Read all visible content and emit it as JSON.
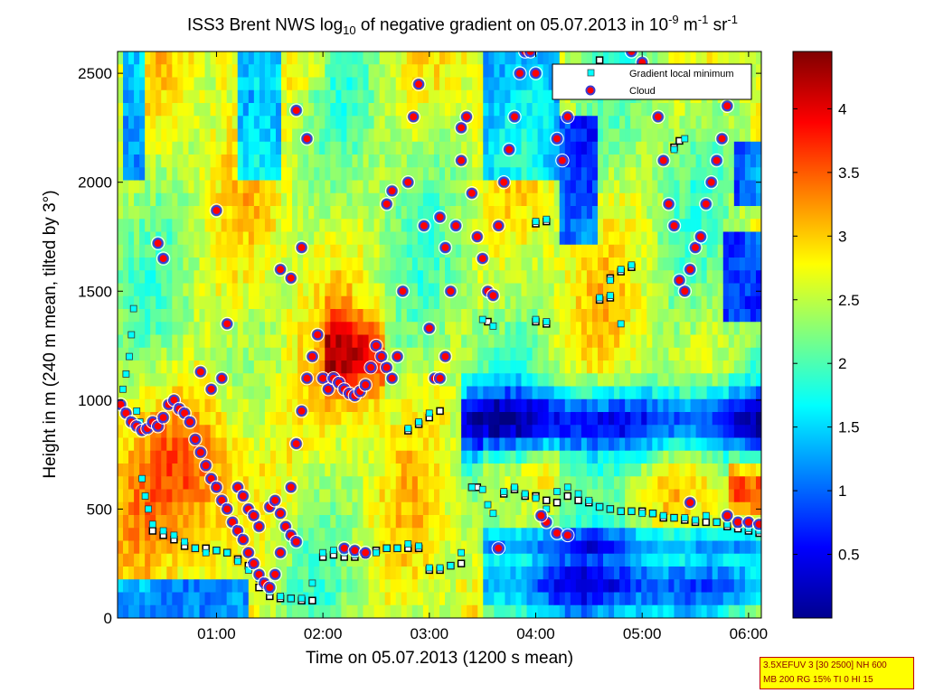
{
  "title": {
    "prefix": "ISS3 Brent NWS log",
    "sub": "10",
    "middle": " of negative gradient on 05.07.2013 in 10",
    "exp1": "-9",
    "unit1": " m",
    "exp2": "-1",
    "unit2": " sr",
    "exp3": "-1"
  },
  "chart_data": {
    "type": "heatmap",
    "xlabel": "Time on 05.07.2013 (1200 s mean)",
    "ylabel": "Height in m (240 m mean, tilted by 3°)",
    "x_ticks": [
      "01:00",
      "02:00",
      "03:00",
      "04:00",
      "05:00",
      "06:00"
    ],
    "x_tick_hours": [
      1,
      2,
      3,
      4,
      5,
      6
    ],
    "xlim_hours": [
      0.07,
      6.12
    ],
    "y_ticks": [
      0,
      500,
      1000,
      1500,
      2000,
      2500
    ],
    "ylim": [
      0,
      2600
    ],
    "colorbar": {
      "ticks": [
        "0.5",
        "1",
        "1.5",
        "2",
        "2.5",
        "3",
        "3.5",
        "4"
      ],
      "tick_values": [
        0.5,
        1,
        1.5,
        2,
        2.5,
        3,
        3.5,
        4
      ],
      "range": [
        0,
        4.45
      ],
      "colormap": "jet"
    },
    "legend": {
      "placement": "top-right",
      "entries": [
        {
          "label": "Gradient local minimum",
          "color": "#00ffff",
          "marker": "square"
        },
        {
          "label": "Cloud",
          "color": "#ff0000",
          "marker": "circle"
        }
      ]
    },
    "series": [
      {
        "name": "Gradient local minimum",
        "points": [
          [
            0.12,
            1050
          ],
          [
            0.15,
            1120
          ],
          [
            0.18,
            1200
          ],
          [
            0.2,
            1300
          ],
          [
            0.22,
            1420
          ],
          [
            0.25,
            950
          ],
          [
            0.28,
            900
          ],
          [
            0.3,
            640
          ],
          [
            0.33,
            560
          ],
          [
            0.36,
            500
          ],
          [
            0.4,
            430
          ],
          [
            0.5,
            400
          ],
          [
            0.6,
            380
          ],
          [
            0.7,
            350
          ],
          [
            0.8,
            320
          ],
          [
            0.9,
            300
          ],
          [
            1.0,
            310
          ],
          [
            1.1,
            300
          ],
          [
            1.2,
            260
          ],
          [
            1.3,
            220
          ],
          [
            1.4,
            180
          ],
          [
            1.5,
            120
          ],
          [
            1.6,
            100
          ],
          [
            1.7,
            90
          ],
          [
            1.8,
            90
          ],
          [
            1.9,
            160
          ],
          [
            2.0,
            300
          ],
          [
            2.1,
            310
          ],
          [
            2.2,
            300
          ],
          [
            2.3,
            290
          ],
          [
            2.4,
            290
          ],
          [
            2.5,
            300
          ],
          [
            2.6,
            320
          ],
          [
            2.7,
            320
          ],
          [
            2.8,
            340
          ],
          [
            2.9,
            330
          ],
          [
            3.0,
            230
          ],
          [
            3.1,
            230
          ],
          [
            3.2,
            240
          ],
          [
            3.3,
            300
          ],
          [
            3.4,
            600
          ],
          [
            3.5,
            590
          ],
          [
            3.55,
            520
          ],
          [
            3.6,
            480
          ],
          [
            3.65,
            320
          ],
          [
            3.7,
            580
          ],
          [
            3.8,
            600
          ],
          [
            3.9,
            570
          ],
          [
            4.0,
            550
          ],
          [
            4.1,
            500
          ],
          [
            4.2,
            580
          ],
          [
            4.3,
            600
          ],
          [
            4.4,
            570
          ],
          [
            4.5,
            540
          ],
          [
            4.6,
            510
          ],
          [
            4.7,
            500
          ],
          [
            4.8,
            490
          ],
          [
            4.9,
            490
          ],
          [
            5.0,
            480
          ],
          [
            5.1,
            480
          ],
          [
            5.2,
            470
          ],
          [
            5.3,
            460
          ],
          [
            5.4,
            460
          ],
          [
            5.5,
            450
          ],
          [
            5.6,
            470
          ],
          [
            5.7,
            440
          ],
          [
            5.8,
            430
          ],
          [
            5.9,
            430
          ],
          [
            6.0,
            410
          ],
          [
            6.1,
            400
          ],
          [
            2.8,
            870
          ],
          [
            2.9,
            900
          ],
          [
            3.0,
            940
          ],
          [
            4.0,
            1820
          ],
          [
            4.1,
            1830
          ],
          [
            4.0,
            1370
          ],
          [
            4.1,
            1360
          ],
          [
            4.7,
            1550
          ],
          [
            4.8,
            1600
          ],
          [
            4.9,
            1620
          ],
          [
            4.6,
            1470
          ],
          [
            4.7,
            1480
          ],
          [
            4.8,
            1350
          ],
          [
            3.5,
            1370
          ],
          [
            3.6,
            1340
          ],
          [
            5.3,
            2150
          ],
          [
            5.4,
            2200
          ]
        ]
      },
      {
        "name": "Cloud",
        "points": [
          [
            0.1,
            980
          ],
          [
            0.15,
            940
          ],
          [
            0.2,
            900
          ],
          [
            0.25,
            880
          ],
          [
            0.3,
            860
          ],
          [
            0.35,
            870
          ],
          [
            0.4,
            900
          ],
          [
            0.45,
            880
          ],
          [
            0.5,
            920
          ],
          [
            0.55,
            980
          ],
          [
            0.6,
            1000
          ],
          [
            0.65,
            960
          ],
          [
            0.7,
            940
          ],
          [
            0.75,
            900
          ],
          [
            0.8,
            820
          ],
          [
            0.85,
            760
          ],
          [
            0.9,
            700
          ],
          [
            0.95,
            640
          ],
          [
            1.0,
            600
          ],
          [
            1.05,
            540
          ],
          [
            1.1,
            500
          ],
          [
            1.15,
            440
          ],
          [
            1.2,
            400
          ],
          [
            1.25,
            360
          ],
          [
            1.3,
            300
          ],
          [
            1.35,
            250
          ],
          [
            1.4,
            200
          ],
          [
            1.45,
            160
          ],
          [
            1.5,
            140
          ],
          [
            1.55,
            200
          ],
          [
            1.6,
            300
          ],
          [
            1.65,
            420
          ],
          [
            1.7,
            600
          ],
          [
            1.75,
            800
          ],
          [
            1.8,
            950
          ],
          [
            1.85,
            1100
          ],
          [
            1.9,
            1200
          ],
          [
            1.95,
            1300
          ],
          [
            2.0,
            1100
          ],
          [
            2.05,
            1050
          ],
          [
            2.1,
            1100
          ],
          [
            2.15,
            1080
          ],
          [
            2.2,
            1050
          ],
          [
            2.25,
            1030
          ],
          [
            2.3,
            1020
          ],
          [
            2.35,
            1040
          ],
          [
            2.4,
            1070
          ],
          [
            2.45,
            1150
          ],
          [
            2.5,
            1250
          ],
          [
            2.55,
            1200
          ],
          [
            2.6,
            1150
          ],
          [
            2.65,
            1100
          ],
          [
            2.7,
            1200
          ],
          [
            2.75,
            1500
          ],
          [
            2.8,
            2000
          ],
          [
            2.85,
            2300
          ],
          [
            2.9,
            2450
          ],
          [
            2.95,
            1800
          ],
          [
            3.0,
            1330
          ],
          [
            3.05,
            1100
          ],
          [
            3.1,
            1100
          ],
          [
            3.15,
            1200
          ],
          [
            3.2,
            1500
          ],
          [
            3.25,
            1800
          ],
          [
            3.3,
            2100
          ],
          [
            3.35,
            2300
          ],
          [
            3.4,
            1950
          ],
          [
            3.45,
            1750
          ],
          [
            3.5,
            1650
          ],
          [
            3.55,
            1500
          ],
          [
            3.6,
            1480
          ],
          [
            3.65,
            1800
          ],
          [
            3.7,
            2000
          ],
          [
            3.75,
            2150
          ],
          [
            3.8,
            2300
          ],
          [
            3.85,
            2500
          ],
          [
            3.9,
            2600
          ],
          [
            4.2,
            2200
          ],
          [
            4.25,
            2100
          ],
          [
            4.3,
            2300
          ],
          [
            4.35,
            2500
          ],
          [
            4.9,
            2600
          ],
          [
            5.0,
            2550
          ],
          [
            5.1,
            2500
          ],
          [
            5.15,
            2300
          ],
          [
            5.2,
            2100
          ],
          [
            5.25,
            1900
          ],
          [
            5.3,
            1800
          ],
          [
            5.35,
            1550
          ],
          [
            5.4,
            1500
          ],
          [
            5.45,
            1600
          ],
          [
            5.5,
            1700
          ],
          [
            5.55,
            1750
          ],
          [
            5.6,
            1900
          ],
          [
            5.65,
            2000
          ],
          [
            5.7,
            2100
          ],
          [
            5.75,
            2200
          ],
          [
            5.8,
            2350
          ],
          [
            1.0,
            1870
          ],
          [
            1.1,
            1350
          ],
          [
            0.45,
            1720
          ],
          [
            0.5,
            1650
          ],
          [
            1.6,
            1600
          ],
          [
            1.7,
            1560
          ],
          [
            1.8,
            1700
          ],
          [
            1.75,
            2330
          ],
          [
            1.85,
            2200
          ],
          [
            2.6,
            1900
          ],
          [
            2.65,
            1960
          ],
          [
            0.85,
            1130
          ],
          [
            0.95,
            1050
          ],
          [
            1.05,
            1100
          ],
          [
            1.4,
            420
          ],
          [
            1.5,
            510
          ],
          [
            1.6,
            480
          ],
          [
            1.7,
            380
          ],
          [
            1.75,
            350
          ],
          [
            1.55,
            540
          ],
          [
            3.1,
            1840
          ],
          [
            3.15,
            1700
          ],
          [
            3.3,
            2250
          ],
          [
            3.65,
            320
          ],
          [
            3.95,
            2600
          ],
          [
            4.0,
            2500
          ],
          [
            5.45,
            530
          ],
          [
            5.8,
            470
          ],
          [
            5.9,
            440
          ],
          [
            6.0,
            440
          ],
          [
            6.1,
            430
          ],
          [
            4.2,
            390
          ],
          [
            4.3,
            380
          ],
          [
            4.1,
            440
          ],
          [
            4.05,
            470
          ],
          [
            2.2,
            320
          ],
          [
            2.3,
            310
          ],
          [
            2.4,
            300
          ],
          [
            1.2,
            600
          ],
          [
            1.25,
            560
          ],
          [
            1.3,
            500
          ],
          [
            1.35,
            470
          ]
        ]
      },
      {
        "name": "",
        "points": [
          [
            0.4,
            400
          ],
          [
            0.5,
            380
          ],
          [
            0.6,
            360
          ],
          [
            0.7,
            330
          ],
          [
            0.8,
            320
          ],
          [
            0.9,
            320
          ],
          [
            1.0,
            310
          ],
          [
            1.1,
            300
          ],
          [
            1.2,
            270
          ],
          [
            1.3,
            240
          ],
          [
            1.4,
            140
          ],
          [
            1.5,
            100
          ],
          [
            1.6,
            90
          ],
          [
            1.7,
            90
          ],
          [
            1.8,
            80
          ],
          [
            1.9,
            80
          ],
          [
            2.0,
            280
          ],
          [
            2.1,
            290
          ],
          [
            2.2,
            280
          ],
          [
            2.3,
            280
          ],
          [
            2.4,
            290
          ],
          [
            2.5,
            310
          ],
          [
            2.6,
            320
          ],
          [
            2.7,
            320
          ],
          [
            2.8,
            320
          ],
          [
            2.9,
            320
          ],
          [
            3.0,
            220
          ],
          [
            3.1,
            220
          ],
          [
            3.2,
            240
          ],
          [
            3.3,
            250
          ],
          [
            3.4,
            600
          ],
          [
            3.45,
            600
          ],
          [
            3.7,
            570
          ],
          [
            3.8,
            590
          ],
          [
            3.9,
            560
          ],
          [
            4.0,
            560
          ],
          [
            4.1,
            540
          ],
          [
            4.2,
            530
          ],
          [
            4.3,
            560
          ],
          [
            4.4,
            540
          ],
          [
            4.5,
            530
          ],
          [
            4.6,
            510
          ],
          [
            4.7,
            500
          ],
          [
            4.8,
            490
          ],
          [
            4.9,
            490
          ],
          [
            5.0,
            490
          ],
          [
            5.1,
            480
          ],
          [
            5.2,
            460
          ],
          [
            5.3,
            460
          ],
          [
            5.4,
            450
          ],
          [
            5.5,
            440
          ],
          [
            5.6,
            440
          ],
          [
            5.7,
            440
          ],
          [
            5.8,
            420
          ],
          [
            5.9,
            410
          ],
          [
            6.0,
            400
          ],
          [
            6.1,
            390
          ],
          [
            2.8,
            860
          ],
          [
            2.9,
            890
          ],
          [
            3.0,
            920
          ],
          [
            3.1,
            950
          ],
          [
            4.0,
            1810
          ],
          [
            4.1,
            1820
          ],
          [
            4.0,
            1360
          ],
          [
            4.1,
            1350
          ],
          [
            4.7,
            1560
          ],
          [
            4.8,
            1590
          ],
          [
            4.9,
            1610
          ],
          [
            4.6,
            1460
          ],
          [
            4.7,
            1470
          ],
          [
            3.55,
            1360
          ],
          [
            5.3,
            2160
          ],
          [
            5.35,
            2190
          ],
          [
            4.6,
            2560
          ]
        ]
      }
    ]
  },
  "infobox": {
    "line1": "3.5XEFUV 3 [30 2500] NH 600",
    "line2": "MB 200 RG 15% TI 0 HI 15"
  }
}
